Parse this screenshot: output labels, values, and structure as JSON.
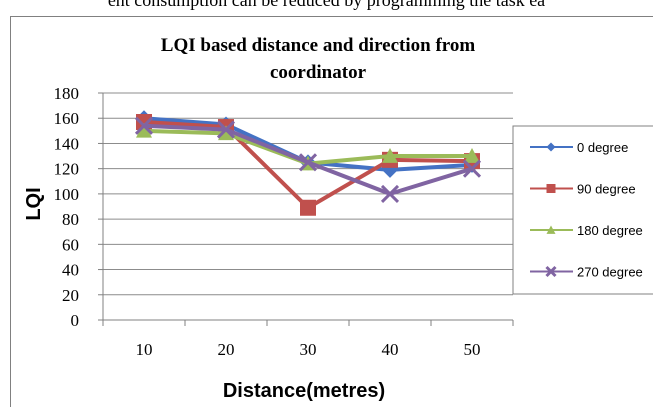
{
  "page": {
    "top_caption": "ent consumption can be reduced by programming the task ea"
  },
  "chart_data": {
    "type": "line",
    "title_lines": [
      "LQI  based distance and direction from",
      "coordinator"
    ],
    "xlabel": "Distance(metres)",
    "ylabel": "LQI",
    "categories": [
      "10",
      "20",
      "30",
      "40",
      "50"
    ],
    "ylim": [
      0,
      180
    ],
    "yticks": [
      0,
      20,
      40,
      60,
      80,
      100,
      120,
      140,
      160,
      180
    ],
    "grid": true,
    "legend_position": "right",
    "series": [
      {
        "name": "0 degree",
        "values": [
          160,
          155,
          125,
          119,
          123
        ],
        "color": "#4472C4",
        "marker": "diamond"
      },
      {
        "name": "90 degree",
        "values": [
          157,
          153,
          89,
          127,
          126
        ],
        "color": "#C0504D",
        "marker": "square"
      },
      {
        "name": "180 degree",
        "values": [
          150,
          148,
          124,
          130,
          130
        ],
        "color": "#9BBB59",
        "marker": "triangle"
      },
      {
        "name": "270 degree",
        "values": [
          154,
          151,
          125,
          100,
          120
        ],
        "color": "#8064A2",
        "marker": "x"
      }
    ]
  }
}
